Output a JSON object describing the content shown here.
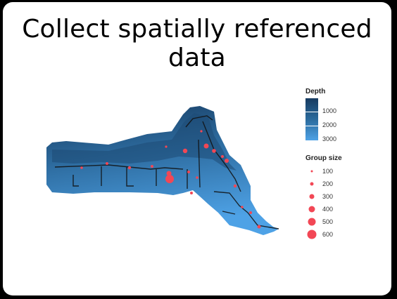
{
  "slide": {
    "title": "Collect spatially referenced data"
  },
  "legend": {
    "depth": {
      "title": "Depth",
      "labels": [
        "1000",
        "2000",
        "3000"
      ],
      "colors": [
        "#173b60",
        "#2b6b9d",
        "#4ea2e6"
      ]
    },
    "group_size": {
      "title": "Group size",
      "labels": [
        "100",
        "200",
        "300",
        "400",
        "500",
        "600"
      ],
      "color": "#f24755"
    }
  },
  "map": {
    "land_color": "#ffffff",
    "water_dark": "#173b60",
    "water_light": "#4ea2e6",
    "sightings_color": "#f24755"
  }
}
